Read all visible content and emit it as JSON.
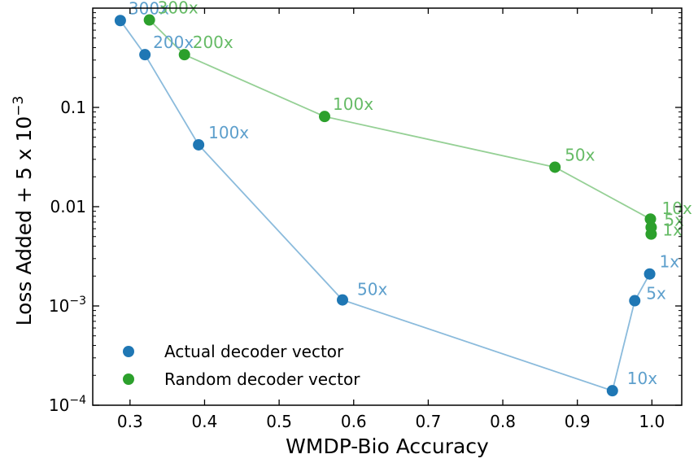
{
  "chart_data": {
    "type": "scatter",
    "xlabel": "WMDP-Bio Accuracy",
    "ylabel": "Loss Added + 5 x 10",
    "ylabel_exponent": "−3",
    "xlim": [
      0.25,
      1.04
    ],
    "ylim": [
      0.0001,
      1.0
    ],
    "yscale": "log",
    "grid": false,
    "legend_position": "lower-left",
    "x_ticks": [
      {
        "value": 0.3,
        "label": "0.3"
      },
      {
        "value": 0.4,
        "label": "0.4"
      },
      {
        "value": 0.5,
        "label": "0.5"
      },
      {
        "value": 0.6,
        "label": "0.6"
      },
      {
        "value": 0.7,
        "label": "0.7"
      },
      {
        "value": 0.8,
        "label": "0.8"
      },
      {
        "value": 0.9,
        "label": "0.9"
      },
      {
        "value": 1.0,
        "label": "1.0"
      }
    ],
    "y_ticks": [
      {
        "value": 0.0001,
        "label": "10",
        "exp": "−4"
      },
      {
        "value": 0.001,
        "label": "10",
        "exp": "−3"
      },
      {
        "value": 0.01,
        "label": "0.01",
        "exp": ""
      },
      {
        "value": 0.1,
        "label": "0.1",
        "exp": ""
      }
    ],
    "series": [
      {
        "name": "Actual decoder vector",
        "color": "#1f77b4",
        "line_color": "#8bbbdc",
        "label_color": "#5d9fcc",
        "points": [
          {
            "x": 0.287,
            "y": 0.75,
            "label": "300x"
          },
          {
            "x": 0.32,
            "y": 0.34,
            "label": "200x"
          },
          {
            "x": 0.392,
            "y": 0.042,
            "label": "100x"
          },
          {
            "x": 0.585,
            "y": 0.00115,
            "label": "50x"
          },
          {
            "x": 0.947,
            "y": 0.00014,
            "label": "10x"
          },
          {
            "x": 0.977,
            "y": 0.00113,
            "label": "5x"
          },
          {
            "x": 0.997,
            "y": 0.0021,
            "label": "1x"
          }
        ]
      },
      {
        "name": "Random decoder vector",
        "color": "#2ca02c",
        "line_color": "#95d095",
        "label_color": "#66bb66",
        "points": [
          {
            "x": 0.326,
            "y": 0.76,
            "label": "300x"
          },
          {
            "x": 0.373,
            "y": 0.34,
            "label": "200x"
          },
          {
            "x": 0.561,
            "y": 0.081,
            "label": "100x"
          },
          {
            "x": 0.87,
            "y": 0.025,
            "label": "50x"
          },
          {
            "x": 0.998,
            "y": 0.0075,
            "label": "10x"
          },
          {
            "x": 0.999,
            "y": 0.0062,
            "label": "5x"
          },
          {
            "x": 0.999,
            "y": 0.0053,
            "label": "1x"
          }
        ]
      }
    ]
  }
}
